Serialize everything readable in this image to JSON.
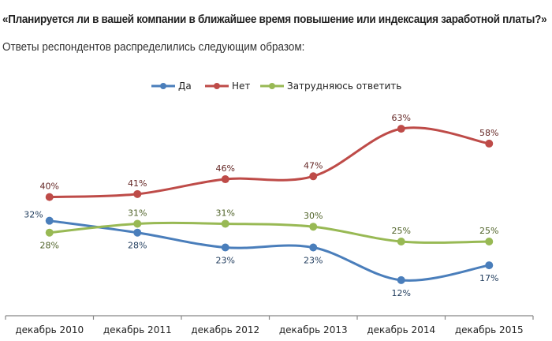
{
  "header": {
    "question": "«Планируется ли в вашей компании в ближайшее время повышение или индексация заработной платы?»",
    "subtitle": "Ответы респондентов распределились следующим образом:"
  },
  "chart_data": {
    "type": "line",
    "title": "",
    "xlabel": "",
    "ylabel": "",
    "ylim": [
      0,
      100
    ],
    "grid": false,
    "legend_position": "top-center",
    "categories": [
      "декабрь 2010",
      "декабрь 2011",
      "декабрь 2012",
      "декабрь 2013",
      "декабрь 2014",
      "декабрь 2015"
    ],
    "series": [
      {
        "name": "Да",
        "color": "#4a7ebb",
        "label_color": "#1f3b5c",
        "values": [
          32,
          28,
          23,
          23,
          12,
          17
        ],
        "label_pos": [
          "left",
          "below",
          "below",
          "below",
          "below",
          "below"
        ]
      },
      {
        "name": "Нет",
        "color": "#be4b48",
        "label_color": "#632523",
        "values": [
          40,
          41,
          46,
          47,
          63,
          58
        ],
        "label_pos": [
          "above",
          "above",
          "above",
          "above",
          "above",
          "above"
        ]
      },
      {
        "name": "Затрудняюсь ответить",
        "color": "#98b954",
        "label_color": "#4f6228",
        "values": [
          28,
          31,
          31,
          30,
          25,
          25
        ],
        "label_pos": [
          "below",
          "above",
          "above",
          "above",
          "above",
          "above"
        ]
      }
    ],
    "value_suffix": "%"
  }
}
